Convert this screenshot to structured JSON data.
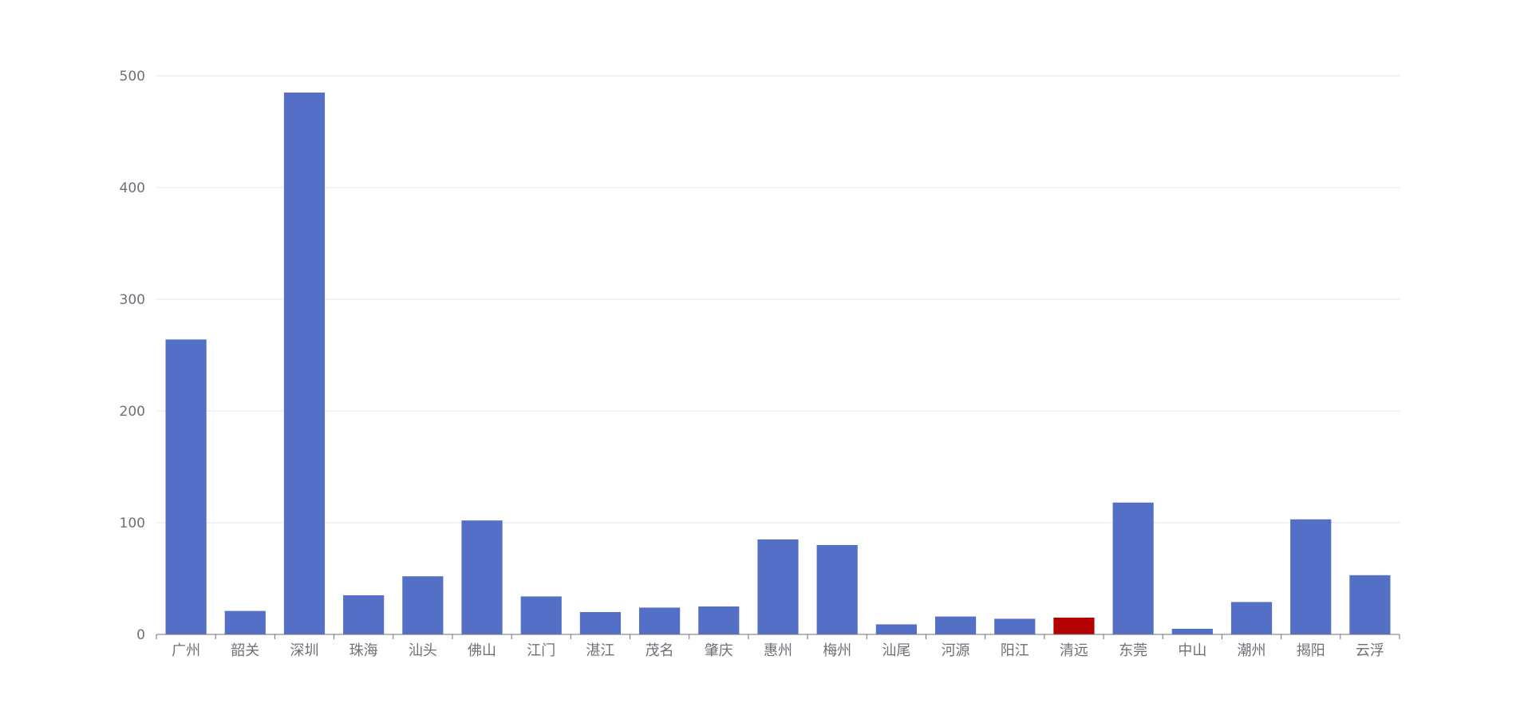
{
  "chart_data": {
    "type": "bar",
    "title": "",
    "xlabel": "",
    "ylabel": "",
    "ylim": [
      0,
      500
    ],
    "yticks": [
      0,
      100,
      200,
      300,
      400,
      500
    ],
    "grid": true,
    "categories": [
      "广州",
      "韶关",
      "深圳",
      "珠海",
      "汕头",
      "佛山",
      "江门",
      "湛江",
      "茂名",
      "肇庆",
      "惠州",
      "梅州",
      "汕尾",
      "河源",
      "阳江",
      "清远",
      "东莞",
      "中山",
      "潮州",
      "揭阳",
      "云浮"
    ],
    "values": [
      264,
      21,
      485,
      35,
      52,
      102,
      34,
      20,
      24,
      25,
      85,
      80,
      9,
      16,
      14,
      15,
      118,
      5,
      29,
      103,
      53
    ],
    "highlight_category": "清远",
    "colors": {
      "bar": "#5470c6",
      "highlight": "#b30000",
      "grid": "#e0e6f1",
      "axis": "#6e7079",
      "label": "#6e7079"
    }
  }
}
